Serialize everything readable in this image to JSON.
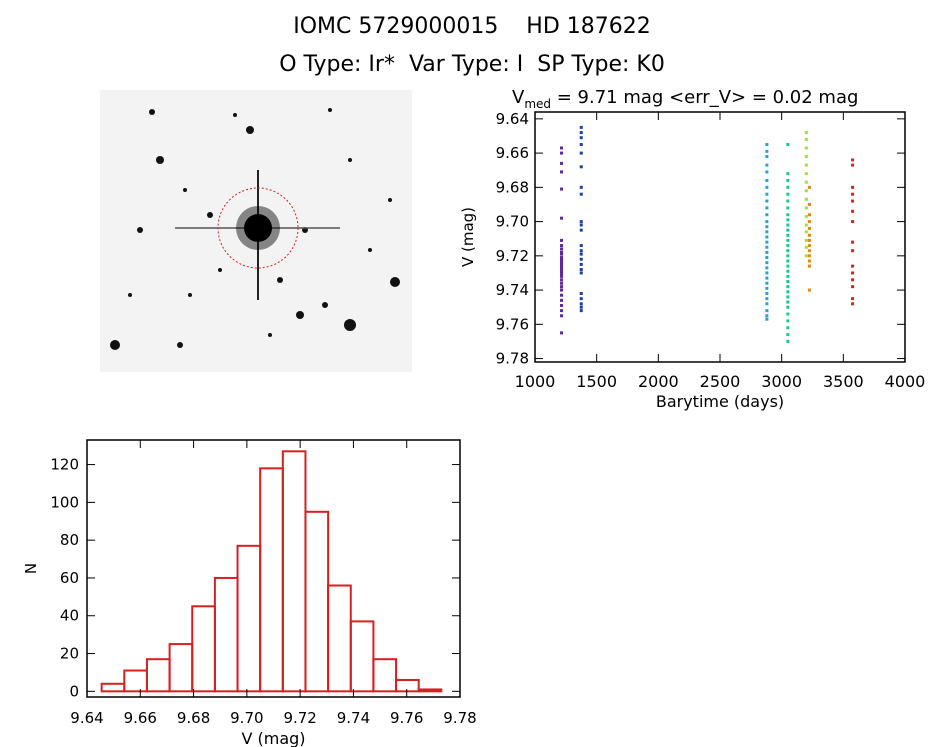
{
  "header": {
    "line1": "IOMC 5729000015    HD 187622",
    "line2": "O Type: Ir*  Var Type: I  SP Type: K0"
  },
  "image_panel": {
    "kind": "star field finder image",
    "colors": {
      "circle": "#d42020",
      "star": "#000000",
      "sky": "#f0f0f0"
    }
  },
  "chart_data": [
    {
      "type": "scatter",
      "title_main": "V",
      "title_sub": "med",
      "title_rest": " = 9.71 mag <err_V> = 0.02 mag",
      "xlabel": "Barytime (days)",
      "ylabel": "V (mag)",
      "xlim": [
        1000,
        4000
      ],
      "ylim": [
        9.782,
        9.636
      ],
      "y_inverted": true,
      "xticks": [
        1000,
        1500,
        2000,
        2500,
        3000,
        3500,
        4000
      ],
      "yticks": [
        9.64,
        9.66,
        9.68,
        9.7,
        9.72,
        9.74,
        9.76,
        9.78
      ],
      "ytick_labels": [
        "9.64",
        "9.66",
        "9.68",
        "9.70",
        "9.72",
        "9.74",
        "9.76",
        "9.78"
      ],
      "grid": false,
      "series": [
        {
          "color": "#5b2a9e",
          "x": 1215,
          "points": [
            9.657,
            9.66,
            9.666,
            9.671,
            9.681,
            9.698,
            9.711,
            9.714,
            9.716,
            9.718,
            9.719,
            9.721,
            9.722,
            9.723,
            9.724,
            9.725,
            9.726,
            9.727,
            9.728,
            9.729,
            9.73,
            9.731,
            9.732,
            9.734,
            9.736,
            9.738,
            9.74,
            9.743,
            9.746,
            9.749,
            9.752,
            9.755,
            9.765
          ]
        },
        {
          "color": "#1f3fa8",
          "x": 1375,
          "points": [
            9.645,
            9.648,
            9.651,
            9.655,
            9.66,
            9.668,
            9.68,
            9.684,
            9.7,
            9.702,
            9.705,
            9.714,
            9.717,
            9.719,
            9.722,
            9.725,
            9.728,
            9.73,
            9.742,
            9.745,
            9.748,
            9.75,
            9.752
          ]
        },
        {
          "color": "#21a6cf",
          "x": 2880,
          "points": [
            9.655,
            9.659,
            9.662,
            9.667,
            9.671,
            9.676,
            9.68,
            9.684,
            9.688,
            9.692,
            9.696,
            9.7,
            9.703,
            9.706,
            9.709,
            9.712,
            9.715,
            9.718,
            9.721,
            9.724,
            9.727,
            9.73,
            9.733,
            9.736,
            9.739,
            9.742,
            9.745,
            9.748,
            9.752,
            9.755,
            9.757
          ]
        },
        {
          "color": "#18c98a",
          "x": 3050,
          "points": [
            9.655,
            9.672,
            9.676,
            9.68,
            9.684,
            9.688,
            9.692,
            9.696,
            9.699,
            9.702,
            9.705,
            9.708,
            9.711,
            9.714,
            9.717,
            9.72,
            9.723,
            9.726,
            9.729,
            9.732,
            9.735,
            9.738,
            9.741,
            9.744,
            9.747,
            9.75,
            9.754,
            9.758,
            9.762,
            9.766,
            9.77
          ]
        },
        {
          "color": "#a7e02a",
          "x": 3200,
          "points": [
            9.648,
            9.652,
            9.657,
            9.662,
            9.667,
            9.672,
            9.677,
            9.682,
            9.687,
            9.692,
            9.697,
            9.702,
            9.706,
            9.711,
            9.715,
            9.72
          ]
        },
        {
          "color": "#e08a14",
          "x": 3225,
          "points": [
            9.68,
            9.69,
            9.696,
            9.7,
            9.704,
            9.708,
            9.711,
            9.714,
            9.717,
            9.72,
            9.723,
            9.726,
            9.74
          ]
        },
        {
          "color": "#c8281e",
          "x": 3575,
          "points": [
            9.664,
            9.667,
            9.68,
            9.684,
            9.688,
            9.694,
            9.7,
            9.712,
            9.717,
            9.726,
            9.73,
            9.734,
            9.738,
            9.745,
            9.748
          ]
        }
      ]
    },
    {
      "type": "bar",
      "subtype": "histogram",
      "xlabel": "V (mag)",
      "ylabel": "N",
      "xlim": [
        9.64,
        9.78
      ],
      "ylim": [
        -3,
        133
      ],
      "xticks": [
        9.64,
        9.66,
        9.68,
        9.7,
        9.72,
        9.74,
        9.76,
        9.78
      ],
      "xtick_labels": [
        "9.64",
        "9.66",
        "9.68",
        "9.70",
        "9.72",
        "9.74",
        "9.76",
        "9.78"
      ],
      "yticks": [
        0,
        20,
        40,
        60,
        80,
        100,
        120
      ],
      "ytick_labels": [
        "0",
        "20",
        "40",
        "60",
        "80",
        "100",
        "120"
      ],
      "bin_start": 9.6455,
      "bin_width": 0.0085,
      "values": [
        4,
        11,
        17,
        25,
        45,
        60,
        77,
        118,
        127,
        95,
        56,
        37,
        17,
        6,
        1
      ],
      "color": "#d42020"
    }
  ]
}
